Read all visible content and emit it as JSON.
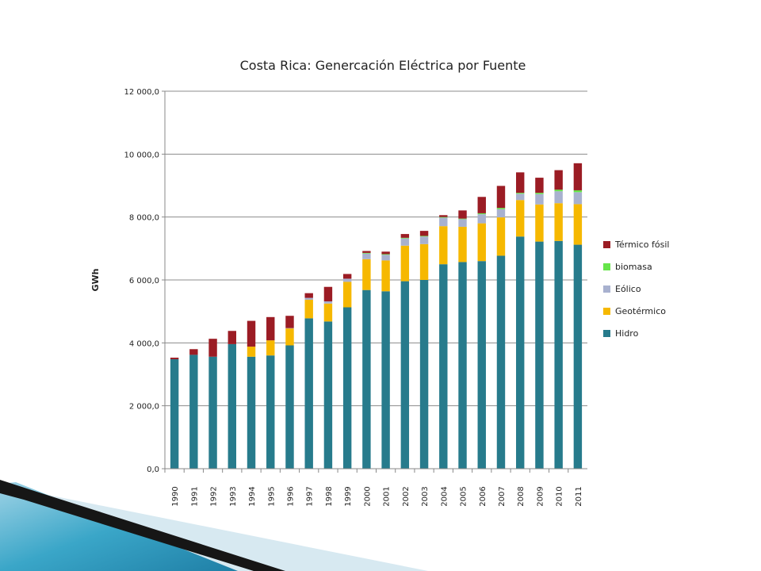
{
  "chart_data": {
    "type": "bar",
    "stacked": true,
    "title": "Costa Rica: Genercación Eléctrica por Fuente",
    "xlabel": "",
    "ylabel": "GWh",
    "ylim": [
      0,
      12000
    ],
    "yticks": [
      "0,0",
      "2 000,0",
      "4 000,0",
      "6 000,0",
      "8 000,0",
      "10 000,0",
      "12 000,0"
    ],
    "grid": true,
    "legend_position": "right",
    "categories": [
      "1990",
      "1991",
      "1992",
      "1993",
      "1994",
      "1995",
      "1996",
      "1997",
      "1998",
      "1999",
      "2000",
      "2001",
      "2002",
      "2003",
      "2004",
      "2005",
      "2006",
      "2007",
      "2008",
      "2009",
      "2010",
      "2011"
    ],
    "series": [
      {
        "name": "Hidro",
        "color": "#277b8c",
        "values": [
          3480,
          3620,
          3560,
          3960,
          3560,
          3600,
          3920,
          4780,
          4680,
          5130,
          5680,
          5640,
          5960,
          6000,
          6500,
          6570,
          6600,
          6770,
          7380,
          7220,
          7240,
          7120
        ]
      },
      {
        "name": "Geotérmico",
        "color": "#f6b800",
        "values": [
          0,
          0,
          0,
          0,
          320,
          480,
          540,
          590,
          570,
          810,
          980,
          980,
          1130,
          1140,
          1210,
          1120,
          1200,
          1220,
          1160,
          1180,
          1200,
          1290
        ]
      },
      {
        "name": "Eólico",
        "color": "#a8b1cf",
        "values": [
          0,
          0,
          0,
          0,
          0,
          0,
          10,
          60,
          70,
          100,
          180,
          180,
          230,
          240,
          270,
          240,
          290,
          260,
          200,
          330,
          380,
          380
        ]
      },
      {
        "name": "biomasa",
        "color": "#66e54a",
        "values": [
          0,
          0,
          0,
          0,
          0,
          0,
          0,
          0,
          0,
          0,
          20,
          20,
          20,
          20,
          20,
          20,
          30,
          40,
          30,
          40,
          50,
          60
        ]
      },
      {
        "name": "Térmico fósil",
        "color": "#9b1c24",
        "values": [
          50,
          180,
          570,
          420,
          820,
          740,
          390,
          150,
          460,
          150,
          60,
          80,
          120,
          160,
          60,
          260,
          520,
          700,
          650,
          480,
          620,
          860
        ]
      }
    ],
    "legend_order": [
      "Térmico fósil",
      "biomasa",
      "Eólico",
      "Geotérmico",
      "Hidro"
    ]
  },
  "colors": {
    "decoration_dark": "#1a1a1a",
    "decoration_blue": "#3aa6c8",
    "decoration_light": "#cfe3ec"
  }
}
